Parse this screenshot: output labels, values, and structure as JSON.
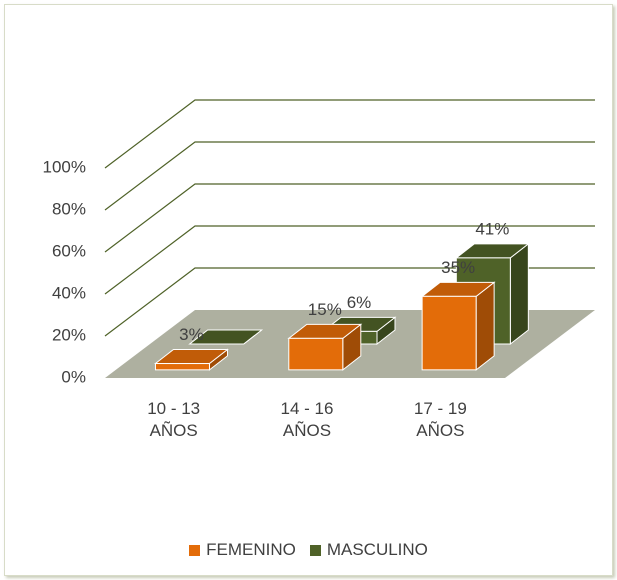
{
  "chart_data": {
    "type": "bar3d",
    "categories": [
      "10 - 13 AÑOS",
      "14 - 16 AÑOS",
      "17 - 19 AÑOS"
    ],
    "series": [
      {
        "name": "FEMENINO",
        "color": "#e36c09",
        "values": [
          3,
          15,
          35
        ],
        "value_labels": [
          "3%",
          "15%",
          "35%"
        ]
      },
      {
        "name": "MASCULINO",
        "color": "#4f6228",
        "values": [
          0,
          6,
          41
        ],
        "value_labels": [
          null,
          "6%",
          "41%"
        ]
      }
    ],
    "ylim": [
      0,
      100
    ],
    "yticks": [
      {
        "value": 0,
        "label": "0%"
      },
      {
        "value": 20,
        "label": "20%"
      },
      {
        "value": 40,
        "label": "40%"
      },
      {
        "value": 60,
        "label": "60%"
      },
      {
        "value": 80,
        "label": "80%"
      },
      {
        "value": 100,
        "label": "100%"
      }
    ],
    "grid": true,
    "legend": "bottom"
  }
}
